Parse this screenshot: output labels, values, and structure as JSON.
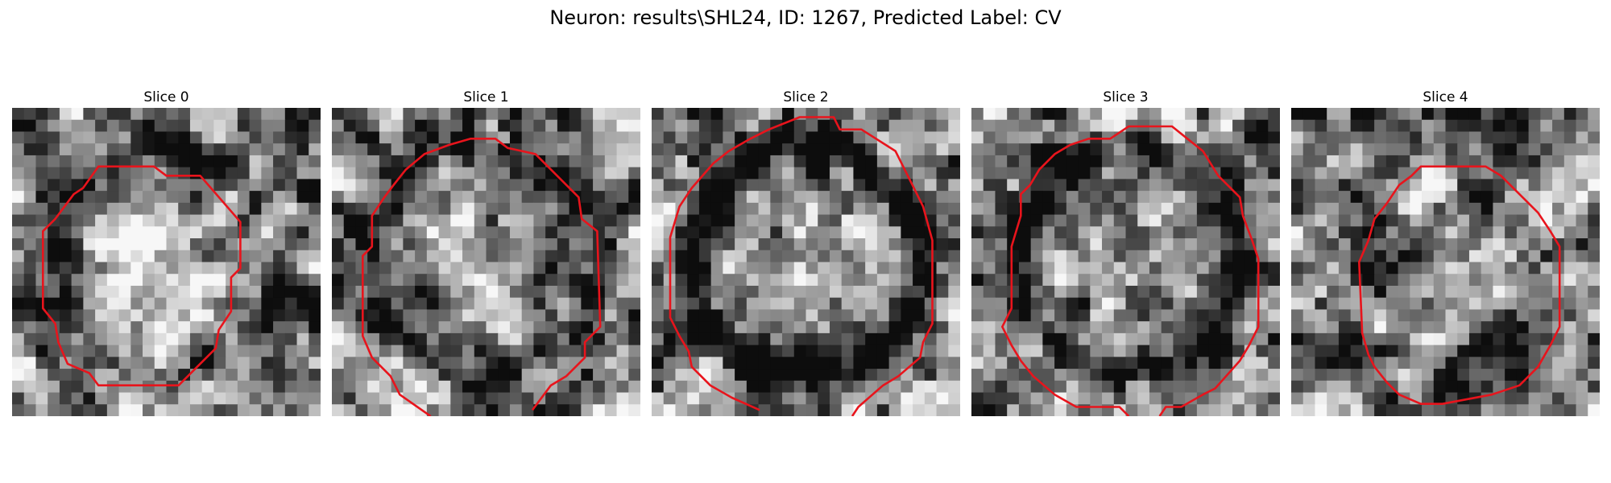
{
  "figure": {
    "title": "Neuron: results\\SHL24, ID: 1267, Predicted Label: CV"
  },
  "style": {
    "contour_color": "#e8141c"
  },
  "panels": [
    {
      "title": "Slice 0",
      "seed": 11,
      "ring_strength": 0.35,
      "ring_radius": 0.46,
      "center_bright": 0.3,
      "contour": [
        [
          0.28,
          0.19
        ],
        [
          0.46,
          0.19
        ],
        [
          0.5,
          0.22
        ],
        [
          0.61,
          0.22
        ],
        [
          0.74,
          0.37
        ],
        [
          0.74,
          0.52
        ],
        [
          0.71,
          0.55
        ],
        [
          0.71,
          0.66
        ],
        [
          0.67,
          0.72
        ],
        [
          0.66,
          0.78
        ],
        [
          0.63,
          0.81
        ],
        [
          0.6,
          0.84
        ],
        [
          0.54,
          0.9
        ],
        [
          0.28,
          0.9
        ],
        [
          0.25,
          0.86
        ],
        [
          0.18,
          0.83
        ],
        [
          0.15,
          0.76
        ],
        [
          0.14,
          0.7
        ],
        [
          0.1,
          0.65
        ],
        [
          0.1,
          0.4
        ],
        [
          0.14,
          0.36
        ],
        [
          0.2,
          0.28
        ],
        [
          0.23,
          0.26
        ]
      ],
      "contour_closed": true
    },
    {
      "title": "Slice 1",
      "seed": 23,
      "ring_strength": 0.3,
      "ring_radius": 0.47,
      "center_bright": 0.15,
      "contour": [
        [
          0.32,
          1.0
        ],
        [
          0.22,
          0.93
        ],
        [
          0.19,
          0.87
        ],
        [
          0.13,
          0.81
        ],
        [
          0.1,
          0.74
        ],
        [
          0.1,
          0.48
        ],
        [
          0.13,
          0.45
        ],
        [
          0.13,
          0.35
        ],
        [
          0.17,
          0.29
        ],
        [
          0.2,
          0.25
        ],
        [
          0.24,
          0.2
        ],
        [
          0.3,
          0.15
        ],
        [
          0.38,
          0.12
        ],
        [
          0.45,
          0.1
        ],
        [
          0.53,
          0.1
        ],
        [
          0.57,
          0.13
        ],
        [
          0.66,
          0.15
        ],
        [
          0.8,
          0.29
        ],
        [
          0.81,
          0.36
        ],
        [
          0.86,
          0.4
        ],
        [
          0.87,
          0.71
        ],
        [
          0.82,
          0.76
        ],
        [
          0.82,
          0.81
        ],
        [
          0.79,
          0.84
        ],
        [
          0.76,
          0.87
        ],
        [
          0.71,
          0.9
        ],
        [
          0.65,
          0.98
        ]
      ],
      "contour_closed": false
    },
    {
      "title": "Slice 2",
      "seed": 37,
      "ring_strength": 0.55,
      "ring_radius": 0.48,
      "center_bright": 0.1,
      "contour": [
        [
          0.35,
          0.98
        ],
        [
          0.26,
          0.94
        ],
        [
          0.19,
          0.9
        ],
        [
          0.13,
          0.84
        ],
        [
          0.12,
          0.79
        ],
        [
          0.09,
          0.74
        ],
        [
          0.06,
          0.68
        ],
        [
          0.06,
          0.42
        ],
        [
          0.09,
          0.32
        ],
        [
          0.13,
          0.26
        ],
        [
          0.2,
          0.18
        ],
        [
          0.25,
          0.14
        ],
        [
          0.32,
          0.1
        ],
        [
          0.38,
          0.07
        ],
        [
          0.48,
          0.03
        ],
        [
          0.59,
          0.03
        ],
        [
          0.61,
          0.07
        ],
        [
          0.68,
          0.07
        ],
        [
          0.79,
          0.14
        ],
        [
          0.82,
          0.2
        ],
        [
          0.85,
          0.26
        ],
        [
          0.88,
          0.32
        ],
        [
          0.91,
          0.43
        ],
        [
          0.91,
          0.7
        ],
        [
          0.88,
          0.76
        ],
        [
          0.87,
          0.81
        ],
        [
          0.8,
          0.87
        ],
        [
          0.75,
          0.9
        ],
        [
          0.67,
          0.97
        ],
        [
          0.65,
          1.0
        ]
      ],
      "contour_closed": false
    },
    {
      "title": "Slice 3",
      "seed": 41,
      "ring_strength": 0.45,
      "ring_radius": 0.47,
      "center_bright": 0.12,
      "contour": [
        [
          0.51,
          1.0
        ],
        [
          0.48,
          0.97
        ],
        [
          0.34,
          0.97
        ],
        [
          0.27,
          0.93
        ],
        [
          0.2,
          0.87
        ],
        [
          0.16,
          0.82
        ],
        [
          0.13,
          0.77
        ],
        [
          0.1,
          0.71
        ],
        [
          0.13,
          0.65
        ],
        [
          0.13,
          0.45
        ],
        [
          0.16,
          0.35
        ],
        [
          0.16,
          0.28
        ],
        [
          0.19,
          0.25
        ],
        [
          0.22,
          0.2
        ],
        [
          0.27,
          0.15
        ],
        [
          0.32,
          0.12
        ],
        [
          0.38,
          0.1
        ],
        [
          0.45,
          0.1
        ],
        [
          0.51,
          0.06
        ],
        [
          0.65,
          0.06
        ],
        [
          0.7,
          0.1
        ],
        [
          0.75,
          0.14
        ],
        [
          0.8,
          0.22
        ],
        [
          0.87,
          0.29
        ],
        [
          0.88,
          0.35
        ],
        [
          0.91,
          0.43
        ],
        [
          0.93,
          0.49
        ],
        [
          0.93,
          0.71
        ],
        [
          0.9,
          0.77
        ],
        [
          0.87,
          0.82
        ],
        [
          0.79,
          0.91
        ],
        [
          0.75,
          0.93
        ],
        [
          0.68,
          0.97
        ],
        [
          0.63,
          0.97
        ],
        [
          0.61,
          1.0
        ]
      ],
      "contour_closed": false
    },
    {
      "title": "Slice 4",
      "seed": 53,
      "ring_strength": 0.1,
      "ring_radius": 0.45,
      "center_bright": 0.05,
      "contour": [
        [
          0.42,
          0.19
        ],
        [
          0.63,
          0.19
        ],
        [
          0.68,
          0.22
        ],
        [
          0.8,
          0.34
        ],
        [
          0.84,
          0.4
        ],
        [
          0.87,
          0.45
        ],
        [
          0.87,
          0.71
        ],
        [
          0.84,
          0.77
        ],
        [
          0.8,
          0.84
        ],
        [
          0.74,
          0.9
        ],
        [
          0.65,
          0.93
        ],
        [
          0.49,
          0.96
        ],
        [
          0.42,
          0.96
        ],
        [
          0.35,
          0.93
        ],
        [
          0.31,
          0.89
        ],
        [
          0.27,
          0.84
        ],
        [
          0.25,
          0.8
        ],
        [
          0.23,
          0.73
        ],
        [
          0.22,
          0.5
        ],
        [
          0.25,
          0.43
        ],
        [
          0.27,
          0.36
        ],
        [
          0.31,
          0.31
        ],
        [
          0.35,
          0.25
        ],
        [
          0.39,
          0.22
        ]
      ],
      "contour_closed": true
    }
  ]
}
